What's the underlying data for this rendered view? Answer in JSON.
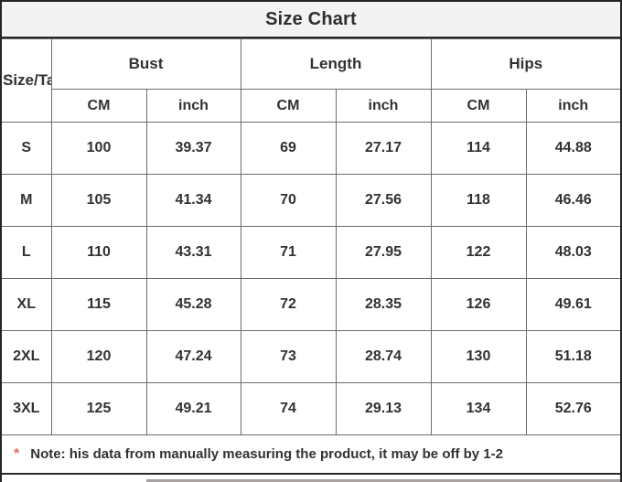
{
  "title": "Size Chart",
  "table": {
    "corner_label": "Size/Ta",
    "groups": [
      "Bust",
      "Length",
      "Hips"
    ],
    "unit_headers": [
      "CM",
      "inch",
      "CM",
      "inch",
      "CM",
      "inch"
    ],
    "rows": [
      {
        "size": "S",
        "values": [
          "100",
          "39.37",
          "69",
          "27.17",
          "114",
          "44.88"
        ]
      },
      {
        "size": "M",
        "values": [
          "105",
          "41.34",
          "70",
          "27.56",
          "118",
          "46.46"
        ]
      },
      {
        "size": "L",
        "values": [
          "110",
          "43.31",
          "71",
          "27.95",
          "122",
          "48.03"
        ]
      },
      {
        "size": "XL",
        "values": [
          "115",
          "45.28",
          "72",
          "28.35",
          "126",
          "49.61"
        ]
      },
      {
        "size": "2XL",
        "values": [
          "120",
          "47.24",
          "73",
          "28.74",
          "130",
          "51.18"
        ]
      },
      {
        "size": "3XL",
        "values": [
          "125",
          "49.21",
          "74",
          "29.13",
          "134",
          "52.76"
        ]
      }
    ]
  },
  "note": {
    "asterisk": "*",
    "text": "Note: his data from manually measuring the product, it may be off by 1-2"
  },
  "colors": {
    "title_bg": "#f3f3f3",
    "border_dark": "#2b2929",
    "border_gray": "#6f6b6b",
    "text": "#333131",
    "asterisk": "#e8705f",
    "bottom_strip": "#a9a2a2"
  },
  "chart_data": {
    "type": "table",
    "title": "Size Chart",
    "columns": [
      "Size/Ta",
      "Bust CM",
      "Bust inch",
      "Length CM",
      "Length inch",
      "Hips CM",
      "Hips inch"
    ],
    "rows": [
      [
        "S",
        100,
        39.37,
        69,
        27.17,
        114,
        44.88
      ],
      [
        "M",
        105,
        41.34,
        70,
        27.56,
        118,
        46.46
      ],
      [
        "L",
        110,
        43.31,
        71,
        27.95,
        122,
        48.03
      ],
      [
        "XL",
        115,
        45.28,
        72,
        28.35,
        126,
        49.61
      ],
      [
        "2XL",
        120,
        47.24,
        73,
        28.74,
        130,
        51.18
      ],
      [
        "3XL",
        125,
        49.21,
        74,
        29.13,
        134,
        52.76
      ]
    ],
    "note": "Note: his data from manually measuring the product, it may be off by 1-2"
  }
}
